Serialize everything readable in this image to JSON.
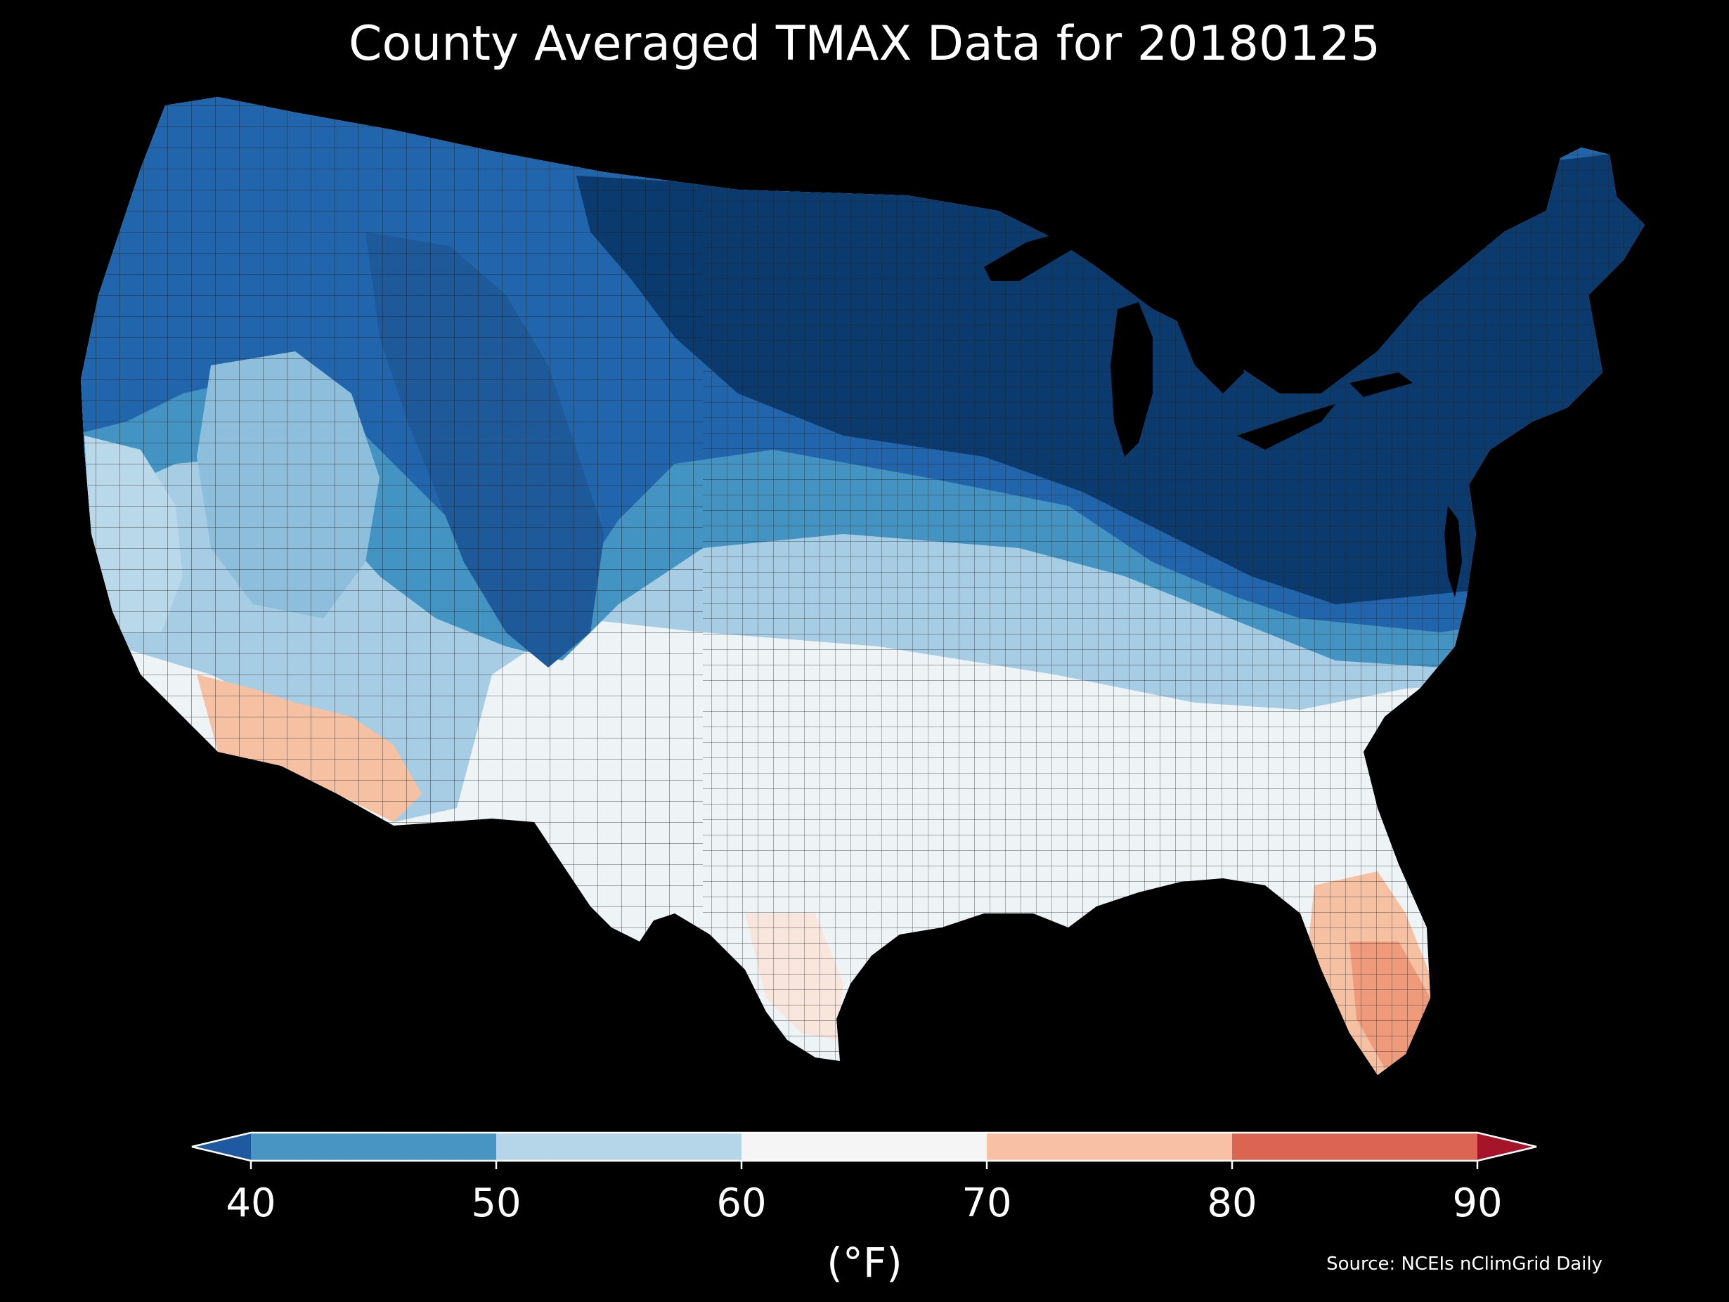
{
  "title": "County Averaged TMAX Data for 20180125",
  "colorbar": {
    "unit_label": "(°F)",
    "ticks": [
      "40",
      "50",
      "60",
      "70",
      "80",
      "90"
    ],
    "bins": [
      {
        "range": "<40",
        "color": "#1f5aa0"
      },
      {
        "range": "40-50",
        "color": "#4895c4"
      },
      {
        "range": "50-60",
        "color": "#b5d6e8"
      },
      {
        "range": "60-70",
        "color": "#f5f5f5"
      },
      {
        "range": "70-80",
        "color": "#f8c0a4"
      },
      {
        "range": "80-90",
        "color": "#db6452"
      },
      {
        "range": ">90",
        "color": "#a51428"
      }
    ]
  },
  "source": "Source: NCEIs nClimGrid Daily",
  "map_colors": {
    "very_cold": "#0b3a6e",
    "cold": "#2166ac",
    "cool": "#4393c3",
    "mild": "#a6cde4",
    "neutral": "#eef3f6",
    "warm": "#f6c1a3",
    "hot": "#ef9a7a"
  }
}
